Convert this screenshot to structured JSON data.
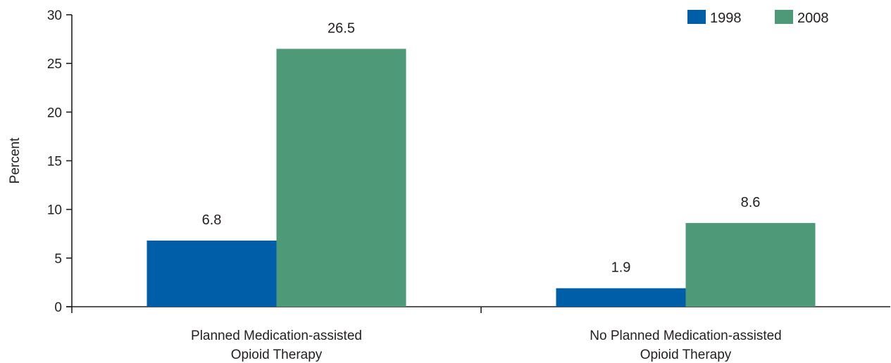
{
  "chart_data": {
    "type": "bar",
    "title": "",
    "xlabel": "",
    "ylabel": "Percent",
    "ylim": [
      0,
      30
    ],
    "yticks": [
      0,
      5,
      10,
      15,
      20,
      25,
      30
    ],
    "grid": false,
    "legend_position": "top-right",
    "categories": [
      [
        "Planned Medication-assisted",
        "Opioid Therapy"
      ],
      [
        "No Planned Medication-assisted",
        "Opioid Therapy"
      ]
    ],
    "series": [
      {
        "name": "1998",
        "color": "#005ea8",
        "values": [
          6.8,
          1.9
        ]
      },
      {
        "name": "2008",
        "color": "#4e9a78",
        "values": [
          26.5,
          8.6
        ]
      }
    ]
  }
}
